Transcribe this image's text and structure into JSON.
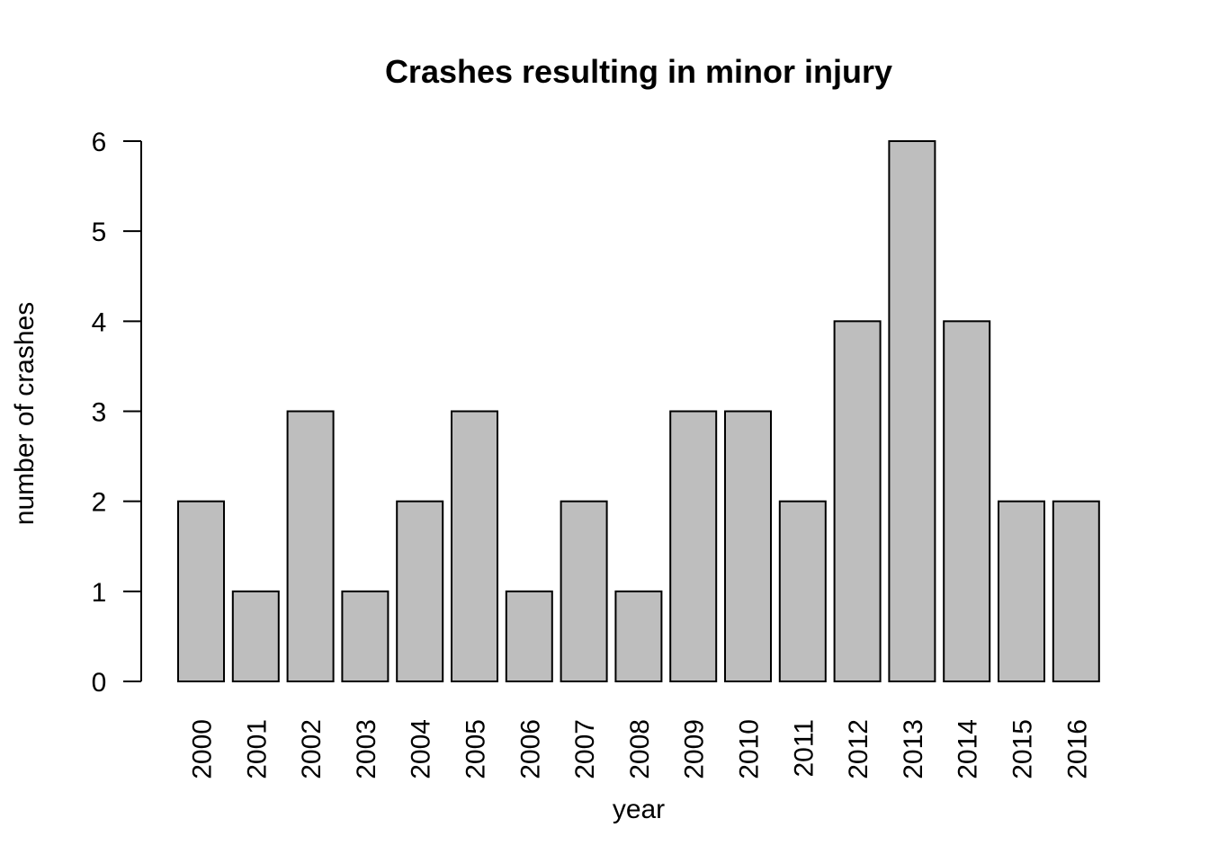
{
  "chart_data": {
    "type": "bar",
    "title": "Crashes resulting in minor injury",
    "xlabel": "year",
    "ylabel": "number of crashes",
    "categories": [
      "2000",
      "2001",
      "2002",
      "2003",
      "2004",
      "2005",
      "2006",
      "2007",
      "2008",
      "2009",
      "2010",
      "2011",
      "2012",
      "2013",
      "2014",
      "2015",
      "2016"
    ],
    "values": [
      2,
      1,
      3,
      1,
      2,
      3,
      1,
      2,
      1,
      3,
      3,
      2,
      4,
      6,
      4,
      2,
      2
    ],
    "ylim": [
      0,
      6
    ],
    "yticks": [
      0,
      1,
      2,
      3,
      4,
      5,
      6
    ],
    "grid": false,
    "bar_color": "#bebebe",
    "edge_color": "#000000"
  }
}
